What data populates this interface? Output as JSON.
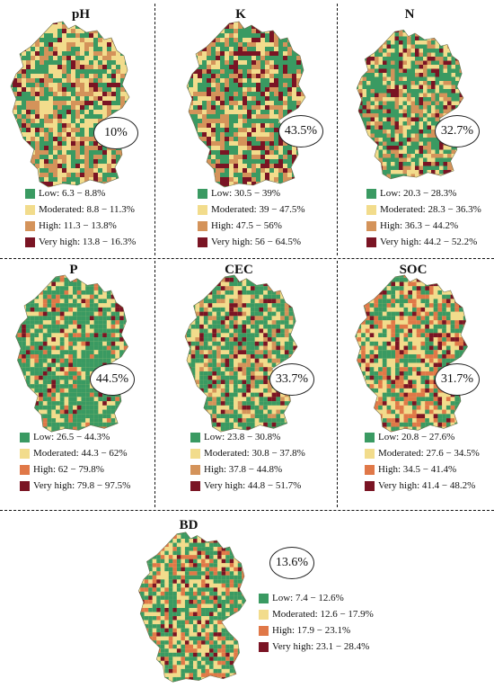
{
  "colors": {
    "low": "#3a9a62",
    "moderated": "#f2dc8c",
    "high_pH": "#d4935a",
    "high": "#e07848",
    "very_high": "#7a1424"
  },
  "panels": [
    {
      "title": "pH",
      "percent": "10%",
      "legend": [
        {
          "label": "Low: 6.3 − 8.8%"
        },
        {
          "label": "Moderated: 8.8 − 11.3%"
        },
        {
          "label": "High: 11.3 − 13.8%"
        },
        {
          "label": "Very high: 13.8 − 16.3%"
        }
      ]
    },
    {
      "title": "K",
      "percent": "43.5%",
      "legend": [
        {
          "label": "Low: 30.5 − 39%"
        },
        {
          "label": "Moderated: 39 − 47.5%"
        },
        {
          "label": "High: 47.5 − 56%"
        },
        {
          "label": "Very high: 56 − 64.5%"
        }
      ]
    },
    {
      "title": "N",
      "percent": "32.7%",
      "legend": [
        {
          "label": "Low: 20.3 − 28.3%"
        },
        {
          "label": "Moderated: 28.3 − 36.3%"
        },
        {
          "label": "High: 36.3 − 44.2%"
        },
        {
          "label": "Very high: 44.2 − 52.2%"
        }
      ]
    },
    {
      "title": "P",
      "percent": "44.5%",
      "legend": [
        {
          "label": "Low: 26.5 − 44.3%"
        },
        {
          "label": "Moderated: 44.3 − 62%"
        },
        {
          "label": "High: 62 − 79.8%"
        },
        {
          "label": "Very high: 79.8 − 97.5%"
        }
      ]
    },
    {
      "title": "CEC",
      "percent": "33.7%",
      "legend": [
        {
          "label": "Low: 23.8 − 30.8%"
        },
        {
          "label": "Moderated: 30.8 − 37.8%"
        },
        {
          "label": "High: 37.8 − 44.8%"
        },
        {
          "label": "Very high: 44.8 − 51.7%"
        }
      ]
    },
    {
      "title": "SOC",
      "percent": "31.7%",
      "legend": [
        {
          "label": "Low: 20.8 − 27.6%"
        },
        {
          "label": "Moderated: 27.6 − 34.5%"
        },
        {
          "label": "High: 34.5 − 41.4%"
        },
        {
          "label": "Very high: 41.4 − 48.2%"
        }
      ]
    },
    {
      "title": "BD",
      "percent": "13.6%",
      "legend": [
        {
          "label": "Low: 7.4 − 12.6%"
        },
        {
          "label": "Moderated: 12.6 − 17.9%"
        },
        {
          "label": "High: 17.9 − 23.1%"
        },
        {
          "label": "Very high: 23.1 − 28.4%"
        }
      ]
    }
  ]
}
